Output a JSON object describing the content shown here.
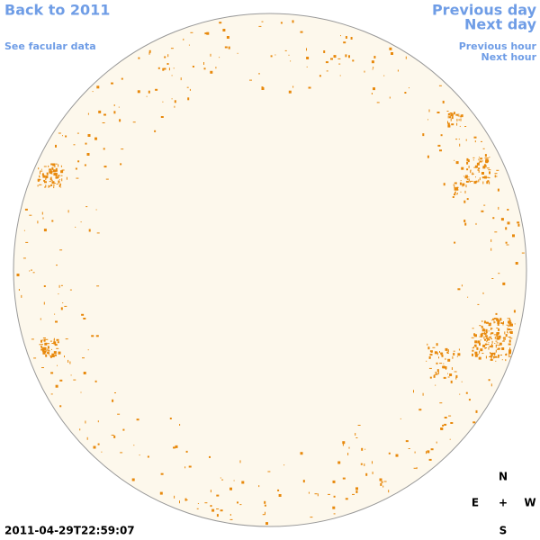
{
  "links": {
    "back": "Back to 2011",
    "facular": "See facular data",
    "previous_day": "Previous day",
    "next_day": "Next day",
    "previous_hour": "Previous hour",
    "next_hour": "Next hour"
  },
  "timestamp": "2011-04-29T22:59:07",
  "compass": {
    "north": "N",
    "east": "E",
    "center": "+",
    "west": "W",
    "south": "S"
  }
}
